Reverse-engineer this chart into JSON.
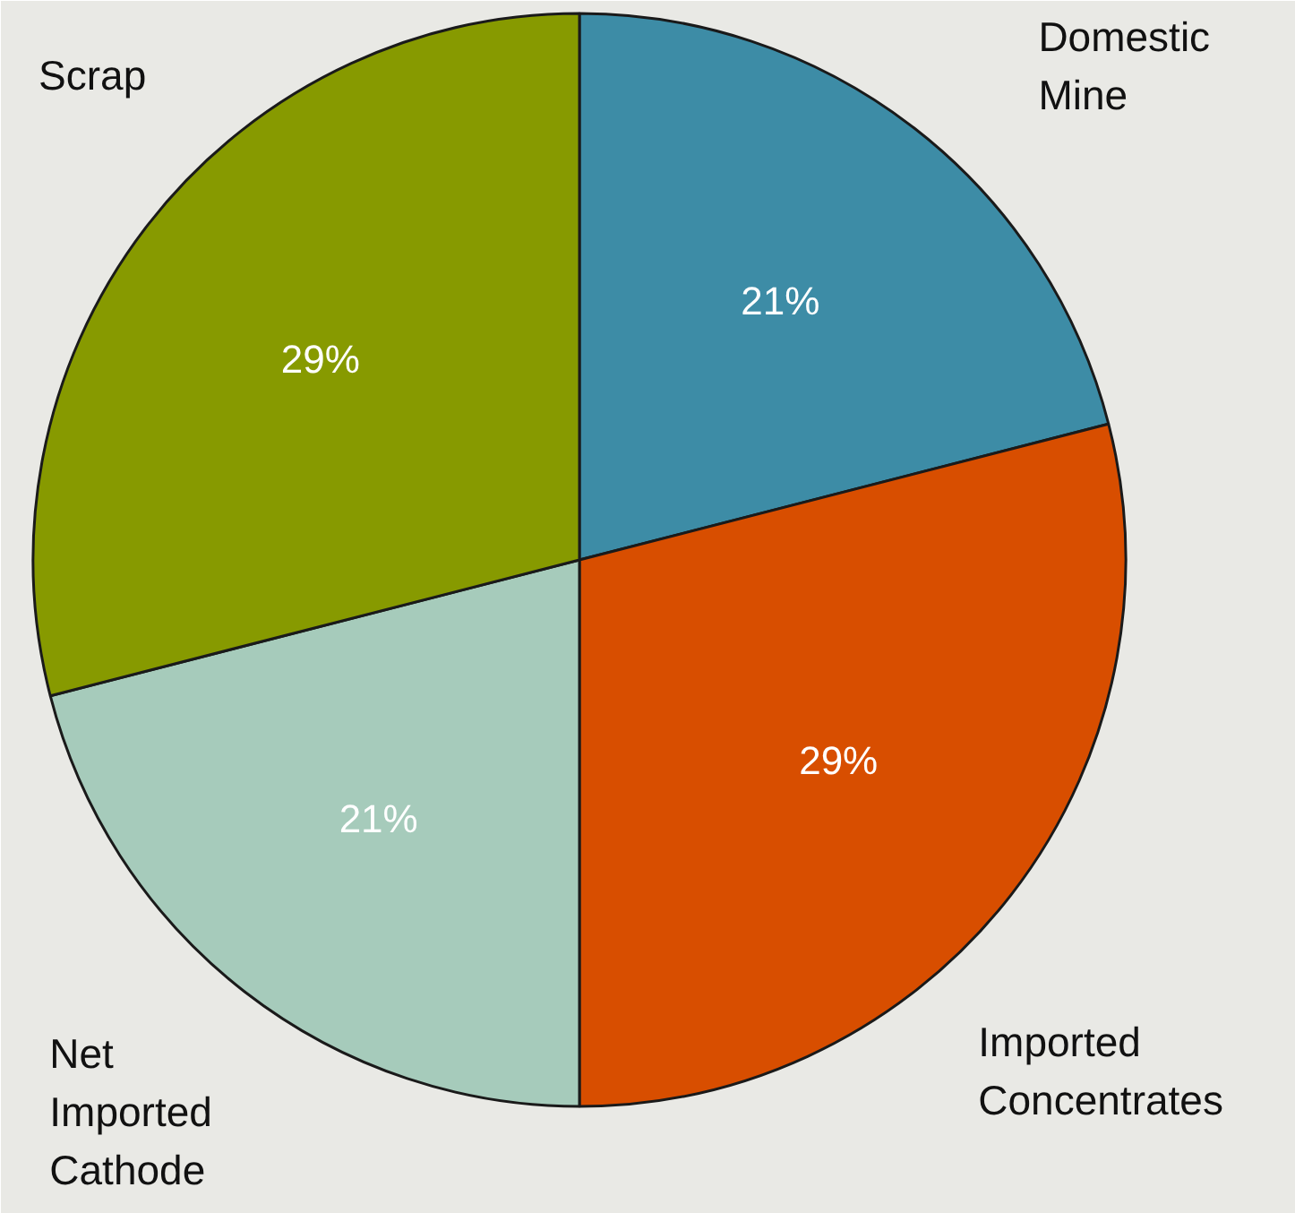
{
  "chart_data": {
    "type": "pie",
    "categories": [
      "Domestic Mine",
      "Imported Concentrates",
      "Net Imported Cathode",
      "Scrap"
    ],
    "values": [
      21,
      29,
      21,
      29
    ],
    "colors": [
      "#3d8ca6",
      "#d84e00",
      "#a6cbbb",
      "#879a00"
    ],
    "value_labels": [
      "21%",
      "29%",
      "21%",
      "29%"
    ]
  }
}
